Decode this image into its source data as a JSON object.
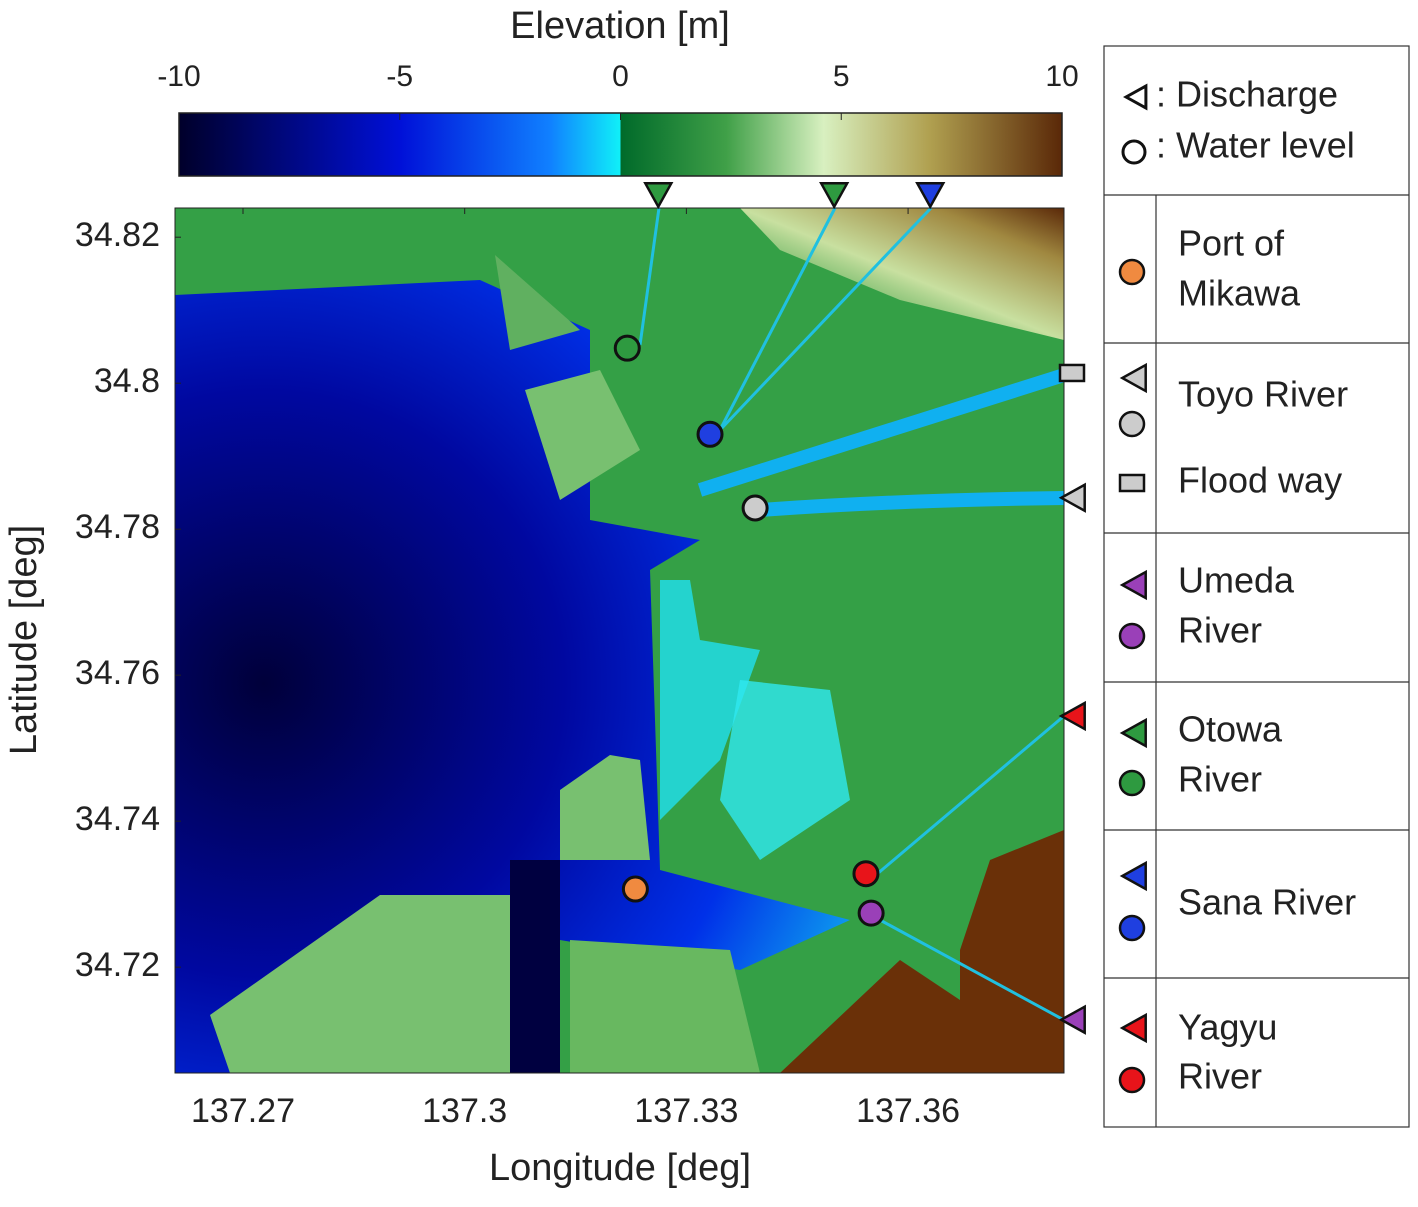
{
  "colorbar": {
    "title": "Elevation [m]",
    "lim": [
      -10,
      10
    ],
    "ticks": [
      -10,
      -5,
      0,
      5,
      10
    ]
  },
  "map": {
    "xlabel": "Longitude [deg]",
    "ylabel": "Latitude [deg]",
    "xlim": [
      137.2608,
      137.3811
    ],
    "ylim": [
      34.7055,
      34.824
    ],
    "xticks": [
      137.27,
      137.3,
      137.33,
      137.36
    ],
    "yticks": [
      34.72,
      34.74,
      34.76,
      34.78,
      34.8,
      34.82
    ]
  },
  "legend": {
    "header": [
      ": Discharge",
      ": Water level"
    ],
    "entries": [
      {
        "label": [
          "Port of",
          "Mikawa"
        ],
        "markers": [
          "circle"
        ],
        "color": "#f08a40"
      },
      {
        "label": [
          "Toyo River"
        ],
        "markers": [
          "triangle",
          "circle"
        ],
        "color": "#cccccc"
      },
      {
        "label": [
          "Flood way"
        ],
        "markers": [
          "rect"
        ],
        "color": "#cccccc"
      },
      {
        "label": [
          "Umeda",
          "River"
        ],
        "markers": [
          "triangle",
          "circle"
        ],
        "color": "#9a40b8"
      },
      {
        "label": [
          "Otowa",
          "River"
        ],
        "markers": [
          "triangle",
          "circle"
        ],
        "color": "#2e9a40"
      },
      {
        "label": [
          "Sana River"
        ],
        "markers": [
          "triangle",
          "circle"
        ],
        "color": "#1f3fe0"
      },
      {
        "label": [
          "Yagyu",
          "River"
        ],
        "markers": [
          "triangle",
          "circle"
        ],
        "color": "#e8141a"
      }
    ]
  },
  "water_level_stations": [
    {
      "lon": 137.322,
      "lat": 34.8048,
      "color": "#2e9a40"
    },
    {
      "lon": 137.3332,
      "lat": 34.793,
      "color": "#1f3fe0"
    },
    {
      "lon": 137.3393,
      "lat": 34.7829,
      "color": "#cccccc"
    },
    {
      "lon": 137.3231,
      "lat": 34.7307,
      "color": "#f08a40"
    },
    {
      "lon": 137.3543,
      "lat": 34.7328,
      "color": "#e8141a"
    },
    {
      "lon": 137.355,
      "lat": 34.7274,
      "color": "#9a40b8"
    }
  ],
  "discharge_top": [
    {
      "lon": 137.3262,
      "color": "#2e9a40"
    },
    {
      "lon": 137.35,
      "color": "#2e9a40"
    },
    {
      "lon": 137.363,
      "color": "#1f3fe0"
    }
  ],
  "discharge_right": [
    {
      "lat": 34.8014,
      "color": "#cccccc",
      "shape": "rect"
    },
    {
      "lat": 34.7843,
      "color": "#cccccc",
      "shape": "triangle"
    },
    {
      "lat": 34.7544,
      "color": "#e8141a",
      "shape": "triangle"
    },
    {
      "lat": 34.7128,
      "color": "#9a40b8",
      "shape": "triangle"
    }
  ]
}
